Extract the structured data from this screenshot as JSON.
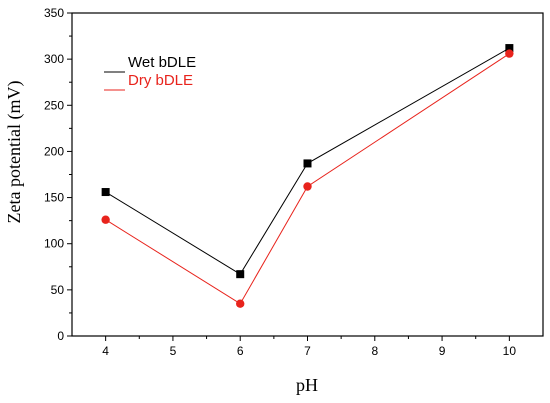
{
  "chart_data": {
    "type": "line",
    "title": "",
    "xlabel": "pH",
    "ylabel": "Zeta potential (mV)",
    "xlim": [
      3.5,
      10.5
    ],
    "ylim": [
      0,
      350
    ],
    "x_ticks": [
      4,
      5,
      6,
      7,
      8,
      9,
      10
    ],
    "y_ticks": [
      0,
      50,
      100,
      150,
      200,
      250,
      300,
      350
    ],
    "x_tick_labels": [
      "4",
      "5",
      "6",
      "7",
      "8",
      "9",
      "10"
    ],
    "y_tick_labels": [
      "0",
      "50",
      "100",
      "150",
      "200",
      "250",
      "300",
      "350"
    ],
    "grid": false,
    "legend_position": "top-left",
    "series": [
      {
        "name": "Wet bDLE",
        "color": "#000000",
        "marker": "square",
        "x": [
          4,
          6,
          7,
          10
        ],
        "y": [
          156,
          67,
          187,
          312
        ]
      },
      {
        "name": "Dry bDLE",
        "color": "#e8231c",
        "marker": "circle",
        "x": [
          4,
          6,
          7,
          10
        ],
        "y": [
          126,
          35,
          162,
          306
        ]
      }
    ]
  }
}
